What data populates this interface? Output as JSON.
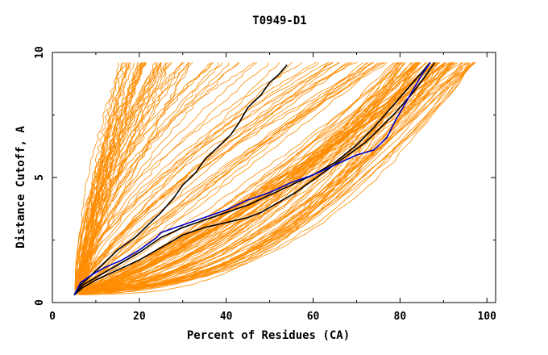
{
  "chart_data": {
    "type": "line",
    "title": "T0949-D1",
    "xlabel": "Percent of Residues (CA)",
    "ylabel": "Distance Cutoff, A",
    "xlim": [
      0,
      102
    ],
    "ylim": [
      0,
      10
    ],
    "x_ticks": [
      "0",
      "20",
      "40",
      "60",
      "80",
      "100"
    ],
    "y_ticks": [
      "0",
      "5",
      "10"
    ],
    "grid": false,
    "colors": {
      "background_lines": "#ff8c00",
      "highlight_black": "#000000",
      "highlight_blue": "#0000cc"
    },
    "series": [
      {
        "color": "#000000",
        "x": [
          5,
          6.5,
          9,
          12,
          15,
          19,
          22,
          25,
          28,
          30,
          33,
          35,
          38,
          41,
          43,
          45,
          48,
          50,
          52,
          53,
          54
        ],
        "y": [
          0.3,
          0.7,
          1.1,
          1.6,
          2.1,
          2.6,
          3.1,
          3.6,
          4.2,
          4.7,
          5.2,
          5.7,
          6.2,
          6.7,
          7.2,
          7.8,
          8.3,
          8.8,
          9.1,
          9.3,
          9.5
        ]
      },
      {
        "color": "#000000",
        "x": [
          5,
          7,
          10,
          15,
          20,
          25,
          30,
          35,
          40,
          45,
          50,
          55,
          60,
          65,
          70,
          74,
          77,
          80,
          83,
          86,
          87
        ],
        "y": [
          0.3,
          0.7,
          1.0,
          1.5,
          2.0,
          2.6,
          3.0,
          3.3,
          3.6,
          3.9,
          4.3,
          4.7,
          5.1,
          5.6,
          6.3,
          7.0,
          7.6,
          8.2,
          8.8,
          9.4,
          9.6
        ]
      },
      {
        "color": "#000000",
        "x": [
          5,
          7,
          10,
          15,
          20,
          25,
          30,
          35,
          40,
          45,
          48,
          52,
          56,
          60,
          64,
          68,
          72,
          75,
          79,
          83,
          86,
          88
        ],
        "y": [
          0.3,
          0.6,
          0.9,
          1.3,
          1.7,
          2.2,
          2.7,
          3.0,
          3.2,
          3.4,
          3.6,
          4.0,
          4.4,
          4.9,
          5.4,
          5.9,
          6.4,
          6.9,
          7.6,
          8.4,
          9.1,
          9.6
        ]
      },
      {
        "color": "#0000cc",
        "x": [
          5,
          6.5,
          9,
          12,
          16,
          20,
          24,
          25,
          30,
          35,
          40,
          45,
          50,
          55,
          60,
          65,
          70,
          74,
          77,
          79,
          81,
          83,
          85,
          87
        ],
        "y": [
          0.3,
          0.8,
          1.1,
          1.4,
          1.7,
          2.1,
          2.6,
          2.8,
          3.1,
          3.4,
          3.7,
          4.1,
          4.4,
          4.8,
          5.1,
          5.5,
          5.9,
          6.1,
          6.6,
          7.3,
          7.9,
          8.5,
          9.1,
          9.6
        ]
      }
    ]
  }
}
